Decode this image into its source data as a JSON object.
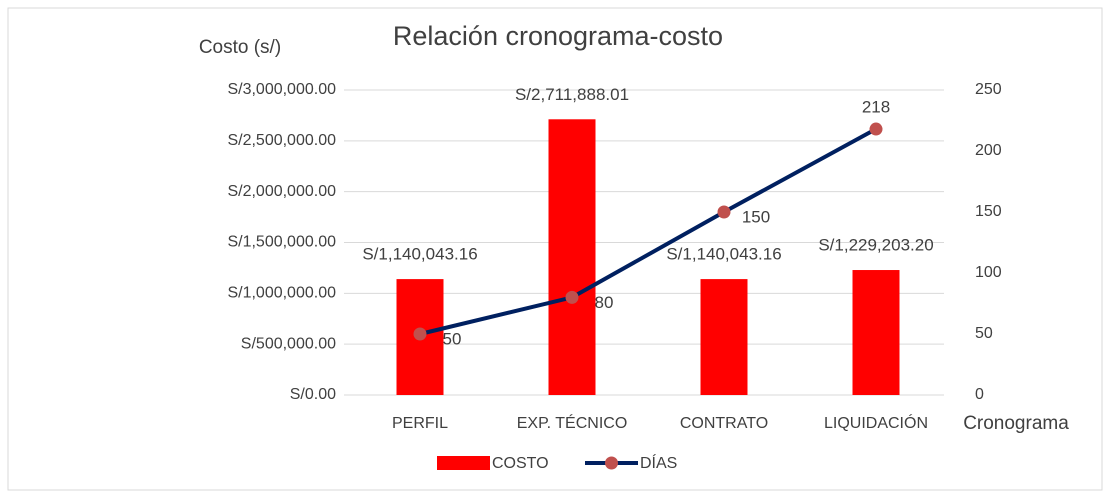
{
  "chart_data": {
    "type": "bar-line",
    "title": "Relación cronograma-costo",
    "y_label": "Costo (s/)",
    "x_label": "Cronograma",
    "categories": [
      "PERFIL",
      "EXP. TÉCNICO",
      "CONTRATO",
      "LIQUIDACIÓN"
    ],
    "series": [
      {
        "name": "COSTO",
        "type": "bar",
        "color": "#ff0000",
        "values": [
          1140043.16,
          2711888.01,
          1140043.16,
          1229203.2
        ],
        "value_labels": [
          "S/1,140,043.16",
          "S/2,711,888.01",
          "S/1,140,043.16",
          "S/1,229,203.20"
        ]
      },
      {
        "name": "DÍAS",
        "type": "line",
        "axis": "y2",
        "color": "#002060",
        "marker_color": "#c0504d",
        "values": [
          50,
          80,
          150,
          218
        ]
      }
    ],
    "ylim": [
      0,
      3000000
    ],
    "yticks": [
      {
        "value": 0,
        "label": "S/0.00"
      },
      {
        "value": 500000,
        "label": "S/500,000.00"
      },
      {
        "value": 1000000,
        "label": "S/1,000,000.00"
      },
      {
        "value": 1500000,
        "label": "S/1,500,000.00"
      },
      {
        "value": 2000000,
        "label": "S/2,000,000.00"
      },
      {
        "value": 2500000,
        "label": "S/2,500,000.00"
      },
      {
        "value": 3000000,
        "label": "S/3,000,000.00"
      }
    ],
    "y2lim": [
      0,
      250
    ],
    "y2ticks": [
      0,
      50,
      100,
      150,
      200,
      250
    ],
    "grid": true,
    "legend": "bottom"
  }
}
